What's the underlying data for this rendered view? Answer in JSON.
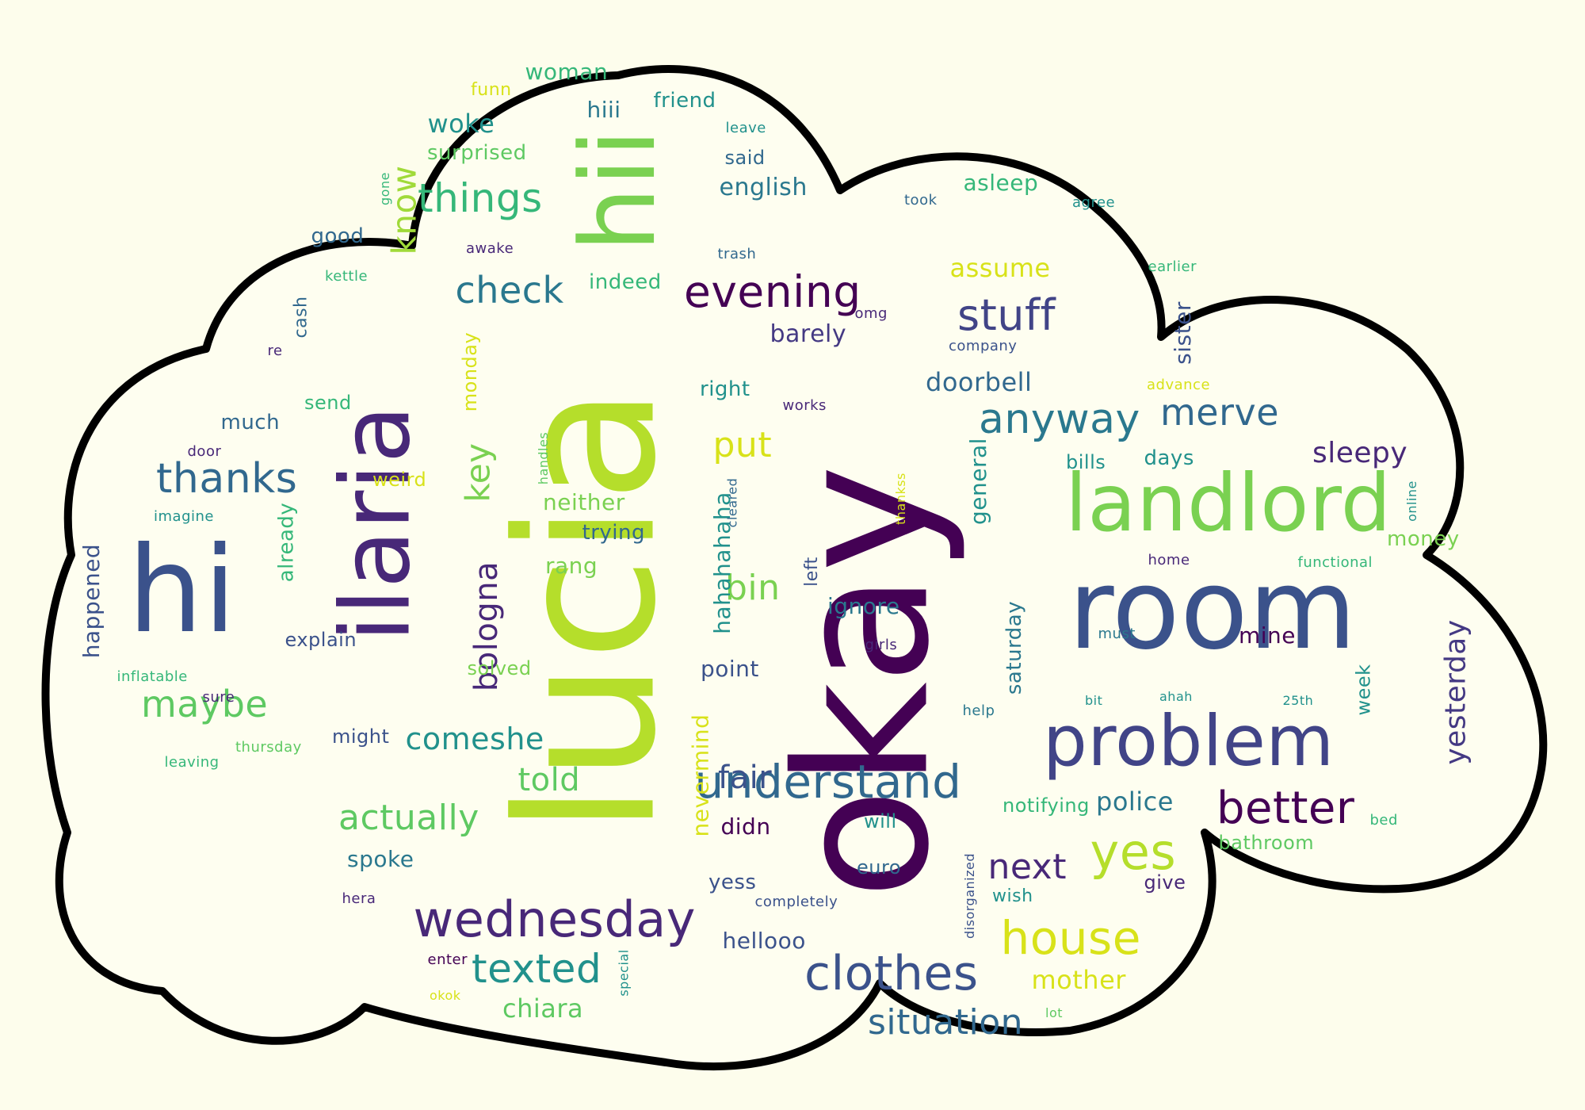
{
  "colors": {
    "background": "#FDFDEC",
    "outline": "#000000",
    "cloud_fill": "#FEFEF0",
    "palette": [
      "#440154",
      "#3B528B",
      "#21918C",
      "#5EC962",
      "#B5DE2B",
      "#D8E219"
    ]
  },
  "words": [
    {
      "text": "okay",
      "color": "#440154"
    },
    {
      "text": "lucia",
      "color": "#B5DE2B"
    },
    {
      "text": "room",
      "color": "#3B528B"
    },
    {
      "text": "hii",
      "color": "#7AD151"
    },
    {
      "text": "hi",
      "color": "#3B528B"
    },
    {
      "text": "ilaria",
      "color": "#482878"
    },
    {
      "text": "landlord",
      "color": "#7AD151"
    },
    {
      "text": "problem",
      "color": "#414487"
    },
    {
      "text": "wednesday",
      "color": "#482878"
    },
    {
      "text": "understand",
      "color": "#31688E"
    },
    {
      "text": "evening",
      "color": "#440154"
    },
    {
      "text": "clothes",
      "color": "#3B528B"
    },
    {
      "text": "better",
      "color": "#440154"
    },
    {
      "text": "anyway",
      "color": "#2A788E"
    },
    {
      "text": "merve",
      "color": "#31688E"
    },
    {
      "text": "stuff",
      "color": "#414487"
    },
    {
      "text": "yes",
      "color": "#B5DE2B"
    },
    {
      "text": "house",
      "color": "#D8E219"
    },
    {
      "text": "things",
      "color": "#35B779"
    },
    {
      "text": "thanks",
      "color": "#31688E"
    },
    {
      "text": "maybe",
      "color": "#5EC962"
    },
    {
      "text": "check",
      "color": "#2A788E"
    },
    {
      "text": "texted",
      "color": "#21918C"
    },
    {
      "text": "situation",
      "color": "#31688E"
    },
    {
      "text": "know",
      "color": "#A0DA39"
    },
    {
      "text": "next",
      "color": "#482878"
    },
    {
      "text": "actually",
      "color": "#5EC962"
    },
    {
      "text": "bologna",
      "color": "#482878"
    },
    {
      "text": "put",
      "color": "#D8E219"
    },
    {
      "text": "bin",
      "color": "#7AD151"
    },
    {
      "text": "comeshe",
      "color": "#21918C"
    },
    {
      "text": "told",
      "color": "#5EC962"
    },
    {
      "text": "fair",
      "color": "#3B528B"
    },
    {
      "text": "key",
      "color": "#7AD151"
    },
    {
      "text": "woke",
      "color": "#21918C"
    },
    {
      "text": "doorbell",
      "color": "#31688E"
    },
    {
      "text": "assume",
      "color": "#D8E219"
    },
    {
      "text": "sleepy",
      "color": "#482878"
    },
    {
      "text": "yesterday",
      "color": "#443983"
    },
    {
      "text": "police",
      "color": "#2A788E"
    },
    {
      "text": "mother",
      "color": "#D8E219"
    },
    {
      "text": "chiara",
      "color": "#5EC962"
    },
    {
      "text": "woman",
      "color": "#35B779"
    },
    {
      "text": "hiii",
      "color": "#2A788E"
    },
    {
      "text": "friend",
      "color": "#21918C"
    },
    {
      "text": "english",
      "color": "#2A788E"
    },
    {
      "text": "surprised",
      "color": "#5EC962"
    },
    {
      "text": "said",
      "color": "#31688E"
    },
    {
      "text": "asleep",
      "color": "#35B779"
    },
    {
      "text": "good",
      "color": "#31688E"
    },
    {
      "text": "indeed",
      "color": "#35B779"
    },
    {
      "text": "barely",
      "color": "#443983"
    },
    {
      "text": "right",
      "color": "#21918C"
    },
    {
      "text": "much",
      "color": "#31688E"
    },
    {
      "text": "send",
      "color": "#35B779"
    },
    {
      "text": "neither",
      "color": "#7AD151"
    },
    {
      "text": "rang",
      "color": "#7AD151"
    },
    {
      "text": "trying",
      "color": "#31688E"
    },
    {
      "text": "ignore",
      "color": "#2A788E"
    },
    {
      "text": "point",
      "color": "#3B528B"
    },
    {
      "text": "didn",
      "color": "#440154"
    },
    {
      "text": "spoke",
      "color": "#2A788E"
    },
    {
      "text": "yess",
      "color": "#3B528B"
    },
    {
      "text": "hellooo",
      "color": "#3B528B"
    },
    {
      "text": "euro",
      "color": "#31688E"
    },
    {
      "text": "will",
      "color": "#21918C"
    },
    {
      "text": "notifying",
      "color": "#35B779"
    },
    {
      "text": "bathroom",
      "color": "#5EC962"
    },
    {
      "text": "mine",
      "color": "#440154"
    },
    {
      "text": "money",
      "color": "#7AD151"
    },
    {
      "text": "days",
      "color": "#21918C"
    },
    {
      "text": "bills",
      "color": "#21918C"
    },
    {
      "text": "general",
      "color": "#21918C"
    },
    {
      "text": "saturday",
      "color": "#2A788E"
    },
    {
      "text": "sister",
      "color": "#3B528B"
    },
    {
      "text": "happened",
      "color": "#3B528B"
    },
    {
      "text": "already",
      "color": "#35B779"
    },
    {
      "text": "explain",
      "color": "#3B528B"
    },
    {
      "text": "weird",
      "color": "#D8E219"
    },
    {
      "text": "might",
      "color": "#3B528B"
    },
    {
      "text": "solved",
      "color": "#7AD151"
    },
    {
      "text": "hahahahaha",
      "color": "#21918C"
    },
    {
      "text": "nevermind",
      "color": "#D8E219"
    },
    {
      "text": "monday",
      "color": "#D8E219"
    },
    {
      "text": "week",
      "color": "#21918C"
    },
    {
      "text": "give",
      "color": "#482878"
    },
    {
      "text": "wish",
      "color": "#21918C"
    },
    {
      "text": "funn",
      "color": "#D8E219"
    },
    {
      "text": "leave",
      "color": "#21918C"
    },
    {
      "text": "took",
      "color": "#31688E"
    },
    {
      "text": "agree",
      "color": "#21918C"
    },
    {
      "text": "trash",
      "color": "#31688E"
    },
    {
      "text": "awake",
      "color": "#482878"
    },
    {
      "text": "kettle",
      "color": "#35B779"
    },
    {
      "text": "cash",
      "color": "#31688E"
    },
    {
      "text": "gone",
      "color": "#35B779"
    },
    {
      "text": "re",
      "color": "#482878"
    },
    {
      "text": "omg",
      "color": "#482878"
    },
    {
      "text": "company",
      "color": "#3B528B"
    },
    {
      "text": "earlier",
      "color": "#35B779"
    },
    {
      "text": "advance",
      "color": "#D8E219"
    },
    {
      "text": "works",
      "color": "#482878"
    },
    {
      "text": "door",
      "color": "#482878"
    },
    {
      "text": "handles",
      "color": "#5EC962"
    },
    {
      "text": "imagine",
      "color": "#21918C"
    },
    {
      "text": "cleared",
      "color": "#31688E"
    },
    {
      "text": "left",
      "color": "#3B528B"
    },
    {
      "text": "thankss",
      "color": "#D8E219"
    },
    {
      "text": "online",
      "color": "#21918C"
    },
    {
      "text": "home",
      "color": "#482878"
    },
    {
      "text": "functional",
      "color": "#35B779"
    },
    {
      "text": "must",
      "color": "#2A788E"
    },
    {
      "text": "girls",
      "color": "#482878"
    },
    {
      "text": "inflatable",
      "color": "#35B779"
    },
    {
      "text": "sure",
      "color": "#482878"
    },
    {
      "text": "help",
      "color": "#2A788E"
    },
    {
      "text": "bit",
      "color": "#21918C"
    },
    {
      "text": "ahah",
      "color": "#21918C"
    },
    {
      "text": "25th",
      "color": "#21918C"
    },
    {
      "text": "leaving",
      "color": "#35B779"
    },
    {
      "text": "thursday",
      "color": "#5EC962"
    },
    {
      "text": "bed",
      "color": "#35B779"
    },
    {
      "text": "hera",
      "color": "#482878"
    },
    {
      "text": "completely",
      "color": "#3B528B"
    },
    {
      "text": "disorganized",
      "color": "#3B528B"
    },
    {
      "text": "lot",
      "color": "#5EC962"
    },
    {
      "text": "enter",
      "color": "#440154"
    },
    {
      "text": "special",
      "color": "#21918C"
    },
    {
      "text": "okok",
      "color": "#D8E219"
    }
  ]
}
